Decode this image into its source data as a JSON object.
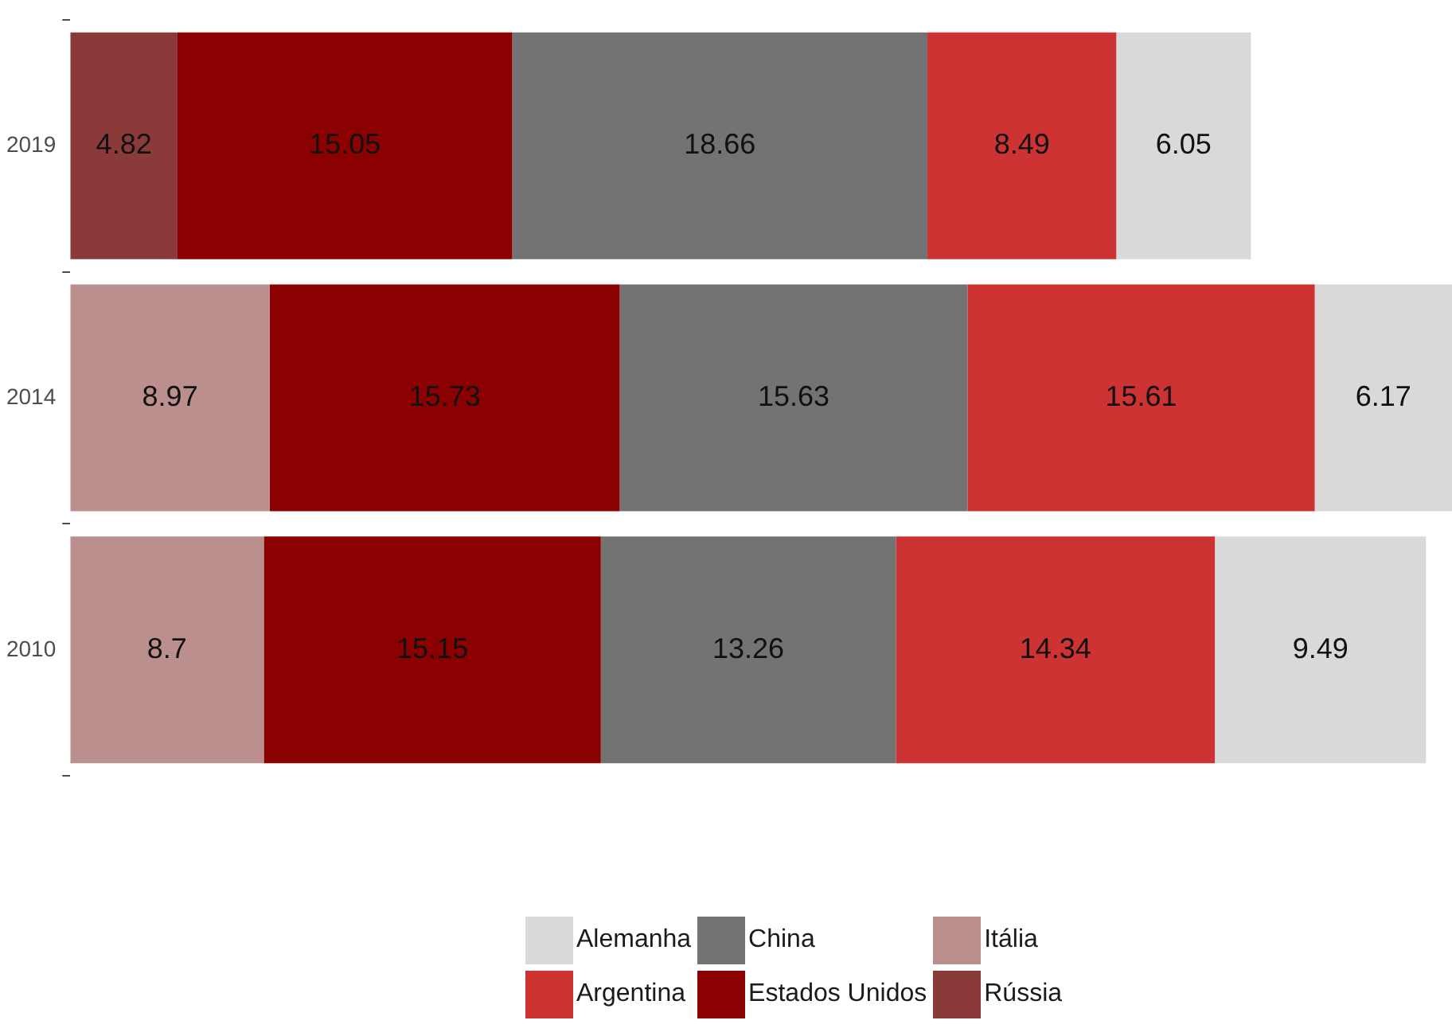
{
  "chart_data": {
    "type": "bar",
    "orientation": "horizontal",
    "stacked": true,
    "categories": [
      "2019",
      "2014",
      "2010"
    ],
    "series": [
      {
        "name": "Rússia",
        "color": "#8b3a3a",
        "values": [
          4.82,
          null,
          null
        ]
      },
      {
        "name": "Itália",
        "color": "#bc8f8f",
        "values": [
          null,
          8.97,
          8.7
        ]
      },
      {
        "name": "Estados Unidos",
        "color": "#8b0000",
        "values": [
          15.05,
          15.73,
          15.15
        ]
      },
      {
        "name": "China",
        "color": "#737373",
        "values": [
          18.66,
          15.63,
          13.26
        ]
      },
      {
        "name": "Argentina",
        "color": "#cd3333",
        "values": [
          8.49,
          15.61,
          14.34
        ]
      },
      {
        "name": "Alemanha",
        "color": "#d9d9d9",
        "values": [
          6.05,
          6.17,
          9.49
        ]
      }
    ],
    "data_labels": true,
    "grid": false,
    "legend": "bottom",
    "tick_labels": "y"
  }
}
